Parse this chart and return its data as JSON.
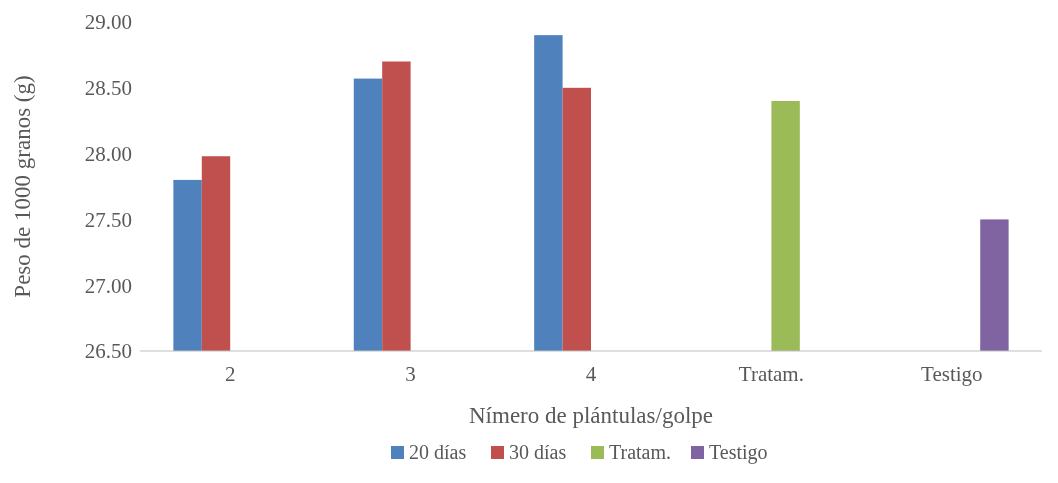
{
  "chart_data": {
    "type": "bar",
    "xlabel": "Nímero de plántulas/golpe",
    "ylabel": "Peso de 1000 granos (g)",
    "categories": [
      "2",
      "3",
      "4",
      "Tratam.",
      "Testigo"
    ],
    "series": [
      {
        "name": "20 días",
        "color": "#4f81bd",
        "values": [
          27.8,
          28.57,
          28.9,
          null,
          null
        ]
      },
      {
        "name": "30 días",
        "color": "#c0504d",
        "values": [
          27.98,
          28.7,
          28.5,
          null,
          null
        ]
      },
      {
        "name": "Tratam.",
        "color": "#9bbb59",
        "values": [
          null,
          null,
          null,
          28.4,
          null
        ]
      },
      {
        "name": "Testigo",
        "color": "#8064a2",
        "values": [
          null,
          null,
          null,
          null,
          27.5
        ]
      }
    ],
    "ylim": [
      26.5,
      29
    ],
    "yticks": [
      {
        "value": 26.5,
        "label": "26.50"
      },
      {
        "value": 27,
        "label": "27.00"
      },
      {
        "value": 27.5,
        "label": "27.50"
      },
      {
        "value": 28,
        "label": "28.00"
      },
      {
        "value": 28.5,
        "label": "28.50"
      },
      {
        "value": 29,
        "label": "29.00"
      }
    ],
    "grid": false,
    "legend": "bottom"
  }
}
